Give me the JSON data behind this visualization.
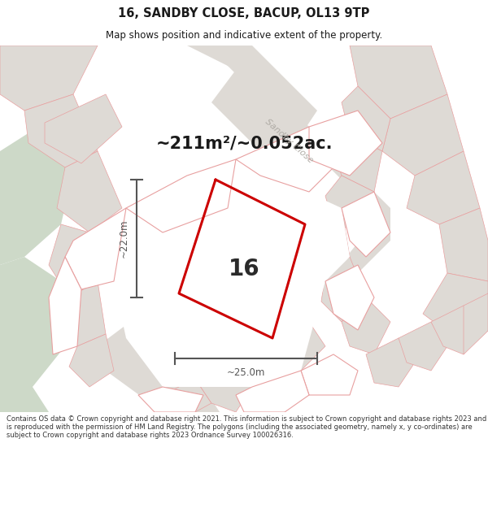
{
  "title": "16, SANDBY CLOSE, BACUP, OL13 9TP",
  "subtitle": "Map shows position and indicative extent of the property.",
  "area_text": "~211m²/~0.052ac.",
  "width_label": "~25.0m",
  "height_label": "~22.0m",
  "number_label": "16",
  "footer": "Contains OS data © Crown copyright and database right 2021. This information is subject to Crown copyright and database rights 2023 and is reproduced with the permission of HM Land Registry. The polygons (including the associated geometry, namely x, y co-ordinates) are subject to Crown copyright and database rights 2023 Ordnance Survey 100026316.",
  "map_bg": "#f0eeea",
  "white_plot": "#ffffff",
  "green_color": "#cdd9c8",
  "outline_color": "#e8a0a0",
  "highlight_color": "#cc0000",
  "dark_grey": "#b0aca6",
  "light_grey": "#dedad5",
  "mid_grey": "#c8c4be",
  "title_color": "#1a1a1a",
  "text_color": "#2a2a2a",
  "footer_color": "#333333",
  "road_label_color": "#b0aca6",
  "measure_color": "#555555"
}
